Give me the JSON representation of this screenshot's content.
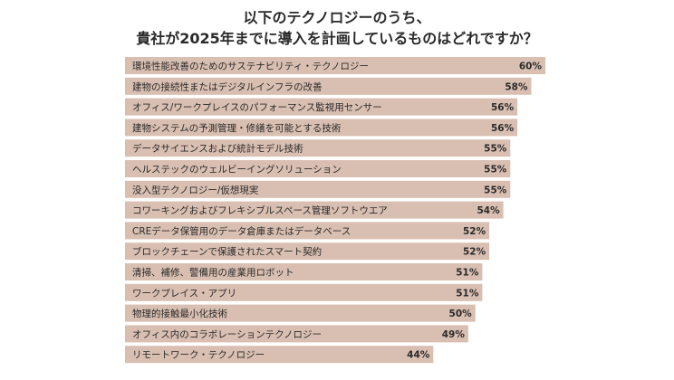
{
  "chart_data": {
    "type": "bar",
    "orientation": "horizontal",
    "title": [
      "以下のテクノロジーのうち、",
      "貴社が2025年までに導入を計画しているものはどれですか？"
    ],
    "categories": [
      "環境性能改善のためのサステナビリティ・テクノロジー",
      "建物の接続性またはデジタルインフラの改善",
      "オフィス/ワークプレイスのパフォーマンス監視用センサー",
      "建物システムの予測管理・修繕を可能とする技術",
      "データサイエンスおよび統計モデル技術",
      "ヘルステックのウェルビーイングソリューション",
      "没入型テクノロジー/仮想現実",
      "コワーキングおよびフレキシブルスペース管理ソフトウエア",
      "CREデータ保管用のデータ倉庫またはデータベース",
      "ブロックチェーンで保護されたスマート契約",
      "清掃、補修、警備用の産業用ロボット",
      "ワークプレイス・アプリ",
      "物理的接触最小化技術",
      "オフィス内のコラボレーションテクノロジー",
      "リモートワーク・テクノロジー"
    ],
    "values": [
      60,
      58,
      56,
      56,
      55,
      55,
      55,
      54,
      52,
      52,
      51,
      51,
      50,
      49,
      44
    ],
    "value_labels": [
      "60%",
      "58%",
      "56%",
      "56%",
      "55%",
      "55%",
      "55%",
      "54%",
      "52%",
      "52%",
      "51%",
      "51%",
      "50%",
      "49%",
      "44%"
    ],
    "xlim": [
      0,
      60
    ],
    "bar_color": "#d9bfb1",
    "label_color": "#2a2a2a",
    "grid": false,
    "legend": "none"
  }
}
